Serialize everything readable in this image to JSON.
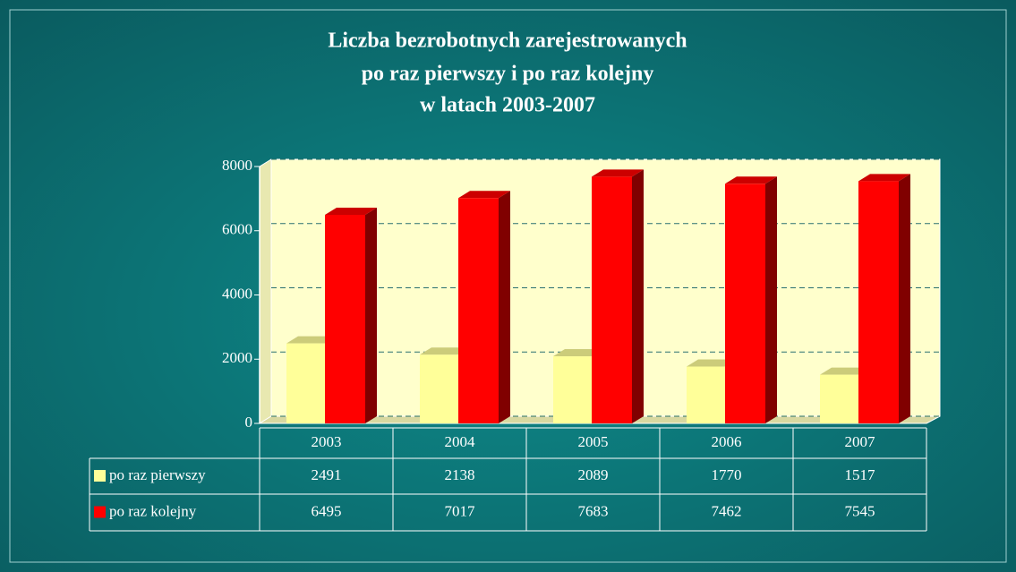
{
  "chart_data": {
    "type": "bar",
    "title": [
      "Liczba bezrobotnych zarejestrowanych",
      "po raz pierwszy i po raz kolejny",
      "w latach 2003-2007"
    ],
    "categories": [
      "2003",
      "2004",
      "2005",
      "2006",
      "2007"
    ],
    "series": [
      {
        "name": "po raz pierwszy",
        "color": "#ffff99",
        "values": [
          2491,
          2138,
          2089,
          1770,
          1517
        ]
      },
      {
        "name": "po raz kolejny",
        "color": "#ff0000",
        "values": [
          6495,
          7017,
          7683,
          7462,
          7545
        ]
      }
    ],
    "ylim": [
      0,
      8000
    ],
    "yticks": [
      0,
      2000,
      4000,
      6000,
      8000
    ],
    "grid": true,
    "legend": "table"
  }
}
